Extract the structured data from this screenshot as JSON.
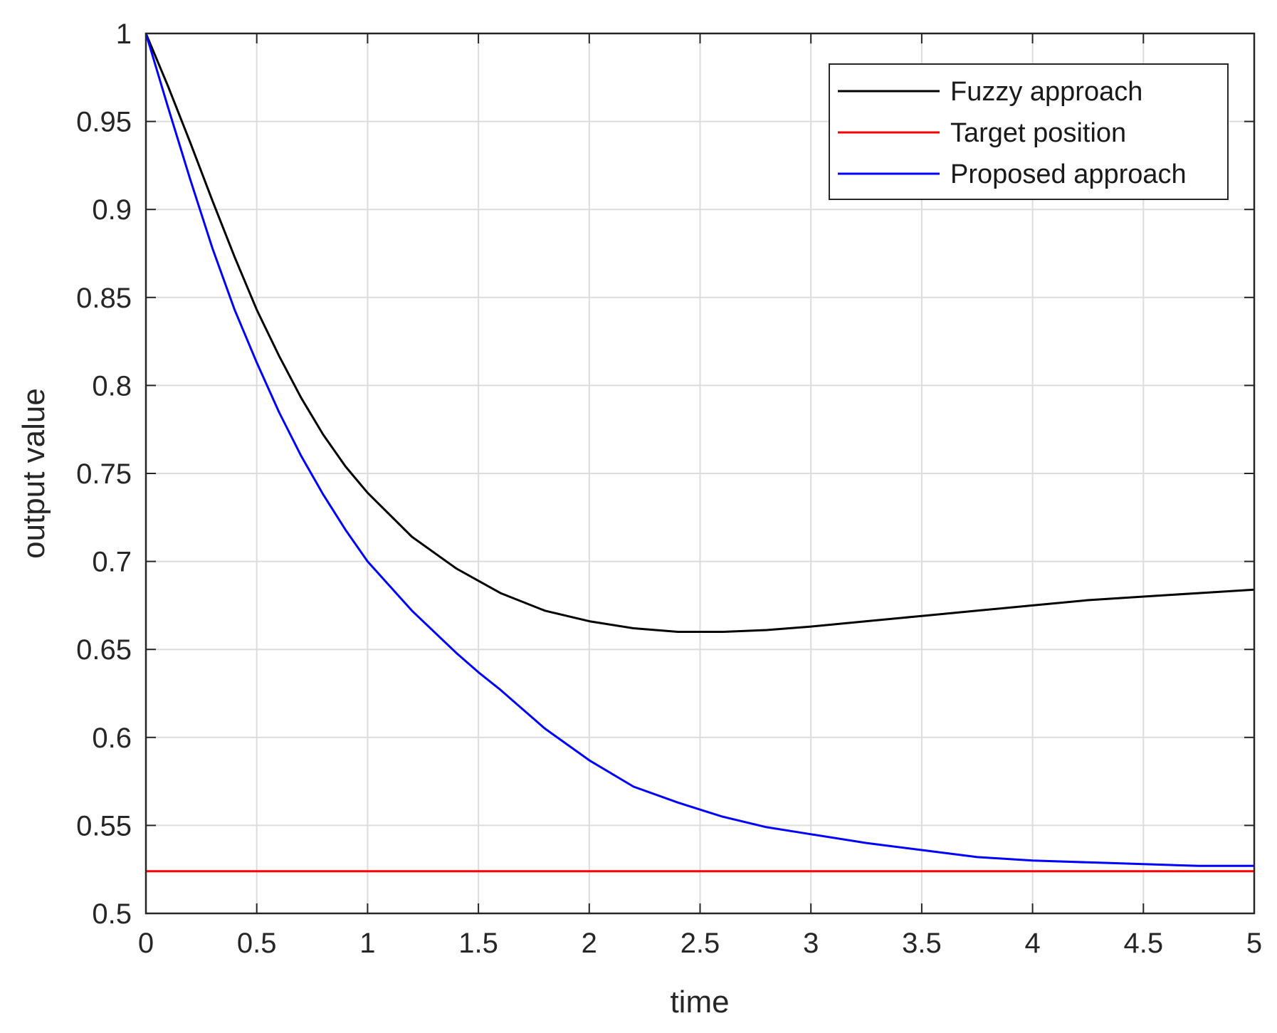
{
  "chart_data": {
    "type": "line",
    "xlabel": "time",
    "ylabel": "output value",
    "xlim": [
      0,
      5
    ],
    "ylim": [
      0.5,
      1
    ],
    "xticks": [
      0,
      0.5,
      1,
      1.5,
      2,
      2.5,
      3,
      3.5,
      4,
      4.5,
      5
    ],
    "yticks": [
      0.5,
      0.55,
      0.6,
      0.65,
      0.7,
      0.75,
      0.8,
      0.85,
      0.9,
      0.95,
      1
    ],
    "xtick_labels": [
      "0",
      "0.5",
      "1",
      "1.5",
      "2",
      "2.5",
      "3",
      "3.5",
      "4",
      "4.5",
      "5"
    ],
    "ytick_labels": [
      "0.5",
      "0.55",
      "0.6",
      "0.65",
      "0.7",
      "0.75",
      "0.8",
      "0.85",
      "0.9",
      "0.95",
      "1"
    ],
    "grid": true,
    "legend_position": "top-right",
    "series": [
      {
        "name": "Fuzzy approach",
        "color": "#000000",
        "x": [
          0,
          0.1,
          0.2,
          0.3,
          0.4,
          0.5,
          0.6,
          0.7,
          0.8,
          0.9,
          1.0,
          1.2,
          1.4,
          1.5,
          1.6,
          1.8,
          2.0,
          2.2,
          2.4,
          2.5,
          2.6,
          2.8,
          3.0,
          3.25,
          3.5,
          3.75,
          4.0,
          4.25,
          4.5,
          4.75,
          5.0
        ],
        "y": [
          1.0,
          0.97,
          0.938,
          0.905,
          0.873,
          0.843,
          0.817,
          0.793,
          0.772,
          0.754,
          0.739,
          0.714,
          0.696,
          0.689,
          0.682,
          0.672,
          0.666,
          0.662,
          0.66,
          0.66,
          0.66,
          0.661,
          0.663,
          0.666,
          0.669,
          0.672,
          0.675,
          0.678,
          0.68,
          0.682,
          0.684
        ]
      },
      {
        "name": "Target position",
        "color": "#ff0000",
        "x": [
          0,
          5
        ],
        "y": [
          0.524,
          0.524
        ]
      },
      {
        "name": "Proposed approach",
        "color": "#0000ff",
        "x": [
          0,
          0.1,
          0.2,
          0.3,
          0.4,
          0.5,
          0.6,
          0.7,
          0.8,
          0.9,
          1.0,
          1.2,
          1.4,
          1.5,
          1.6,
          1.8,
          2.0,
          2.2,
          2.4,
          2.5,
          2.6,
          2.8,
          3.0,
          3.25,
          3.5,
          3.75,
          4.0,
          4.25,
          4.5,
          4.75,
          5.0
        ],
        "y": [
          1.0,
          0.958,
          0.917,
          0.878,
          0.843,
          0.813,
          0.785,
          0.76,
          0.738,
          0.718,
          0.7,
          0.672,
          0.648,
          0.637,
          0.627,
          0.605,
          0.587,
          0.572,
          0.563,
          0.559,
          0.555,
          0.549,
          0.545,
          0.54,
          0.536,
          0.532,
          0.53,
          0.529,
          0.528,
          0.527,
          0.527
        ]
      }
    ]
  }
}
